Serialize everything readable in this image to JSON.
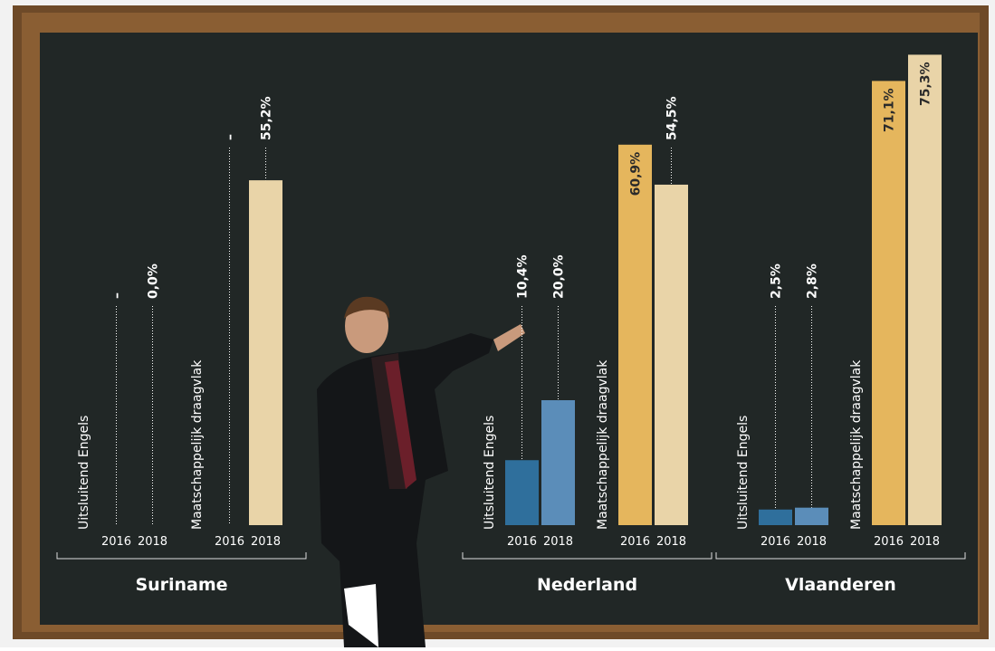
{
  "chart_data": {
    "type": "bar",
    "categories": [
      "Suriname",
      "Nederland",
      "Vlaanderen"
    ],
    "years": [
      "2016",
      "2018"
    ],
    "series": [
      {
        "name": "Uitsluitend Engels",
        "colors": [
          "#2f6f9c",
          "#5b8db9"
        ],
        "values": [
          [
            null,
            0
          ],
          [
            10.4,
            20.0
          ],
          [
            2.5,
            2.8
          ]
        ],
        "value_labels": [
          [
            "–",
            "0,0%"
          ],
          [
            "10,4%",
            "20,0%"
          ],
          [
            "2,5%",
            "2,8%"
          ]
        ]
      },
      {
        "name": "Maatschappelijk draagvlak",
        "colors": [
          "#e5b65d",
          "#e9d4a8"
        ],
        "values": [
          [
            null,
            55.2
          ],
          [
            60.9,
            54.5
          ],
          [
            71.1,
            75.3
          ]
        ],
        "value_labels": [
          [
            "–",
            "55,2%"
          ],
          [
            "60,9%",
            "54,5%"
          ],
          [
            "71,1%",
            "75,3%"
          ]
        ]
      }
    ]
  }
}
